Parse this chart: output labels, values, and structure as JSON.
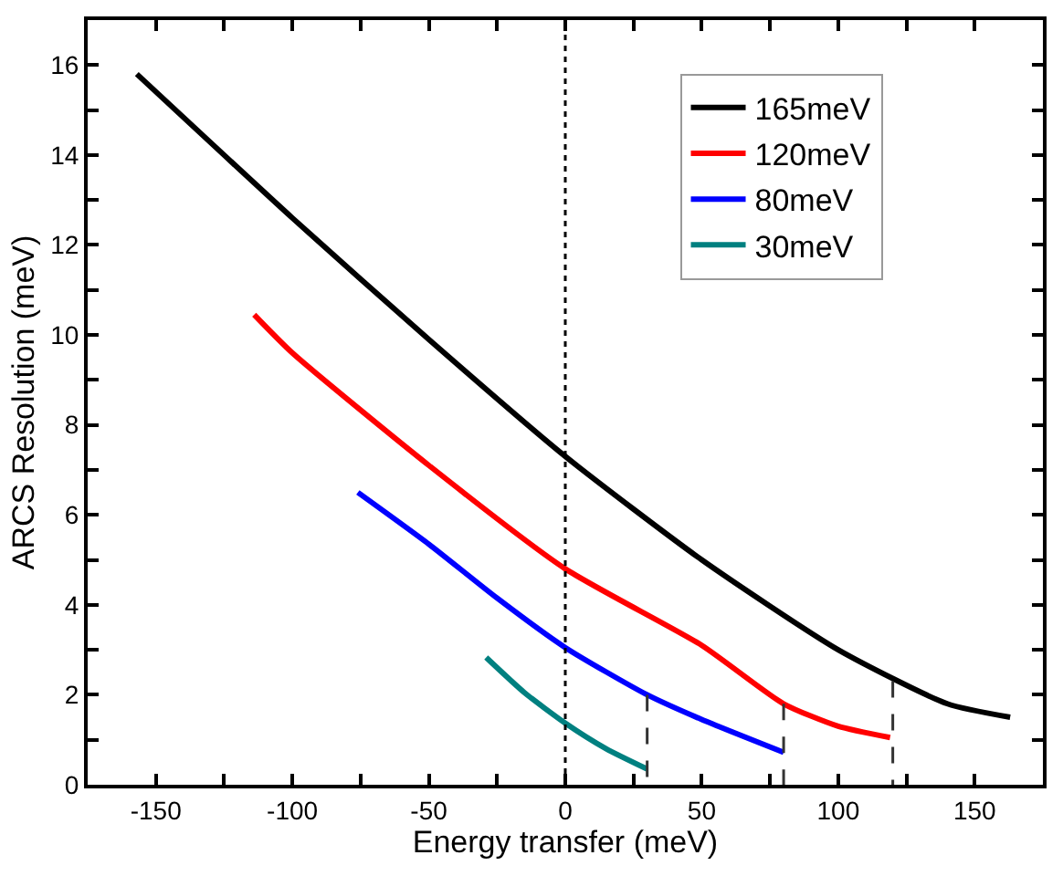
{
  "chart_data": {
    "type": "line",
    "xlabel": "Energy transfer (meV)",
    "ylabel": "ARCS Resolution (meV)",
    "xlim": [
      -175,
      175
    ],
    "ylim": [
      0,
      17
    ],
    "xticks": [
      -150,
      {
        "value": -125,
        "label": null
      },
      -100,
      {
        "value": -75,
        "label": null
      },
      -50,
      {
        "value": -25,
        "label": null
      },
      0,
      {
        "value": 25,
        "label": null
      },
      50,
      {
        "value": 75,
        "label": null
      },
      100,
      {
        "value": 125,
        "label": null
      },
      150
    ],
    "yticks": [
      0,
      {
        "value": 1,
        "label": null
      },
      2,
      {
        "value": 3,
        "label": null
      },
      4,
      {
        "value": 5,
        "label": null
      },
      6,
      {
        "value": 7,
        "label": null
      },
      8,
      {
        "value": 9,
        "label": null
      },
      10,
      {
        "value": 11,
        "label": null
      },
      12,
      {
        "value": 13,
        "label": null
      },
      14,
      {
        "value": 15,
        "label": null
      },
      16
    ],
    "grid": false,
    "legend": "top right",
    "marker": "none",
    "line_style": "solid",
    "ref_lines": [
      {
        "axis": "x",
        "value": 0,
        "color": "#000000",
        "line_style": "dotted"
      }
    ],
    "series": [
      {
        "name": "165meV",
        "color": "#000000",
        "x": [
          -157,
          -100,
          -50,
          0,
          50,
          100,
          140,
          163
        ],
        "values": [
          15.8,
          12.6,
          9.9,
          7.3,
          5.0,
          3.0,
          1.8,
          1.5
        ]
      },
      {
        "name": "120meV",
        "color": "#ff0000",
        "x": [
          -114,
          -100,
          -50,
          0,
          50,
          80,
          100,
          119
        ],
        "values": [
          10.45,
          9.6,
          7.1,
          4.8,
          3.1,
          1.8,
          1.3,
          1.05
        ]
      },
      {
        "name": "80meV",
        "color": "#0000ff",
        "x": [
          -76,
          -50,
          -25,
          0,
          30,
          50,
          80
        ],
        "values": [
          6.5,
          5.35,
          4.15,
          3.05,
          2.0,
          1.45,
          0.72
        ]
      },
      {
        "name": "30meV",
        "color": "#008080",
        "x": [
          -29,
          -15,
          0,
          15,
          30
        ],
        "values": [
          2.83,
          2.05,
          1.37,
          0.8,
          0.35
        ]
      },
      {
        "color": "#333333",
        "line_style": "dashed",
        "x": [
          30,
          30
        ],
        "values": [
          2.0,
          0
        ]
      },
      {
        "color": "#333333",
        "line_style": "dashed",
        "x": [
          80,
          80
        ],
        "values": [
          1.8,
          0
        ]
      },
      {
        "color": "#333333",
        "line_style": "dashed",
        "x": [
          120,
          120
        ],
        "values": [
          2.3,
          0
        ]
      }
    ]
  }
}
